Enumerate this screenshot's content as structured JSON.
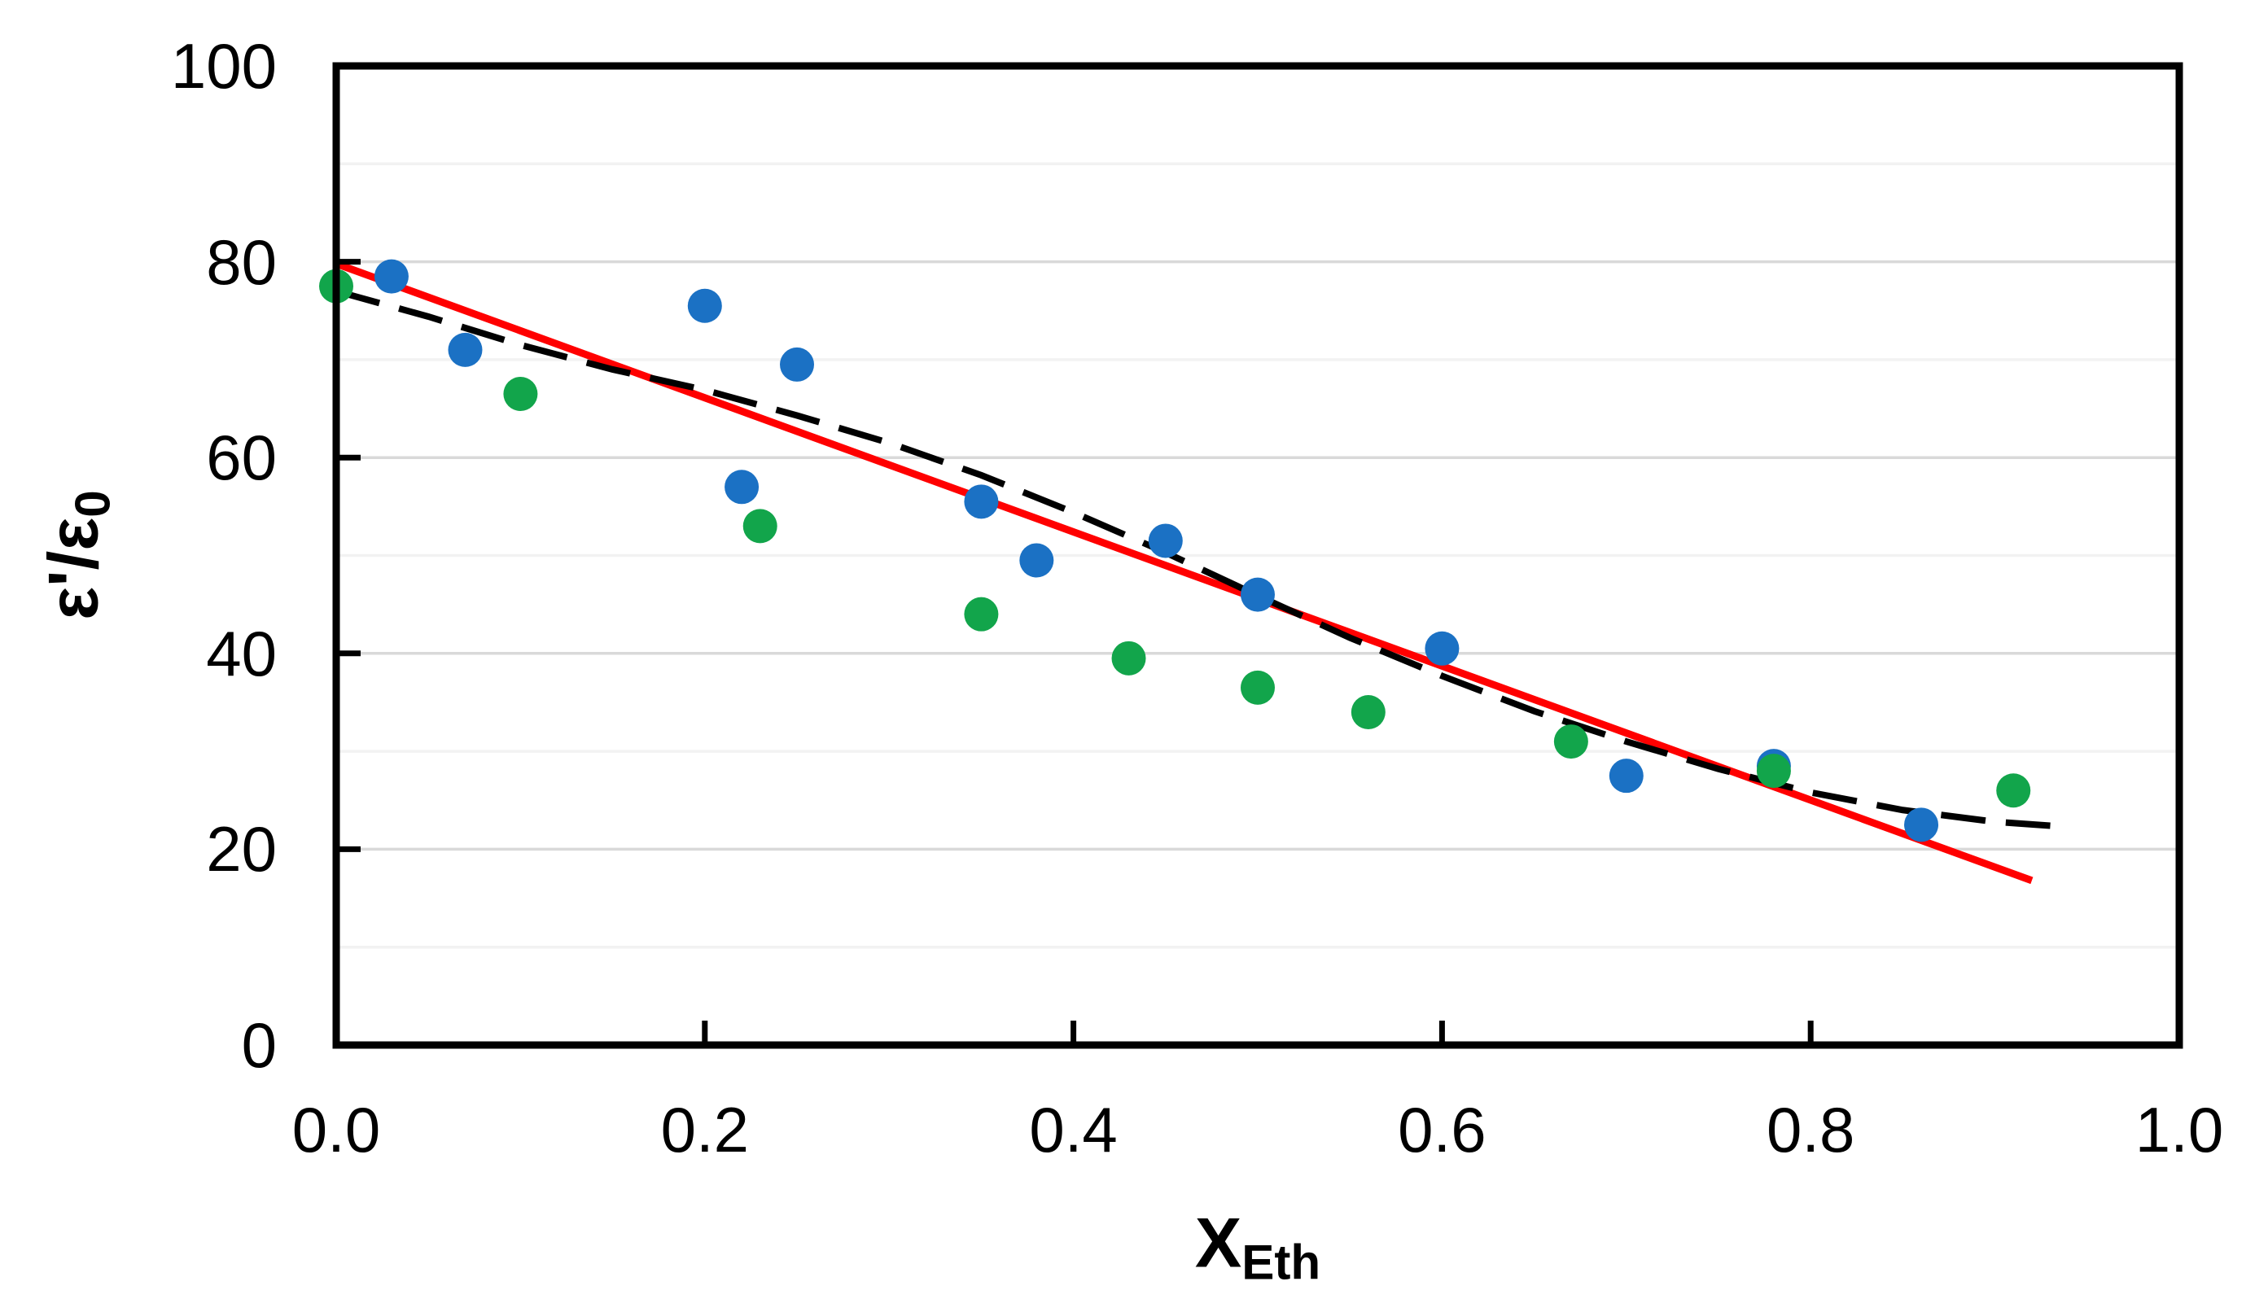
{
  "figure": {
    "background": "#ffffff"
  },
  "colors": {
    "axis": "#000000",
    "major_grid": "#D9D9D9",
    "minor_grid": "#F2F2F2",
    "blue_series": "#1B71C4",
    "green_series": "#12A54B",
    "red_line": "#FF0000",
    "dashed_line": "#000000",
    "text": "#000000"
  },
  "chart_data": {
    "type": "scatter",
    "title": "",
    "xlabel": {
      "main": "X",
      "sub": "Eth"
    },
    "ylabel": {
      "main": "ε'/ε",
      "sub": "0"
    },
    "xlim": [
      0.0,
      1.0
    ],
    "ylim": [
      0,
      100
    ],
    "grid": {
      "major": "on",
      "minor": "on",
      "minor_step": 10,
      "major_step": 20
    },
    "x_ticks": {
      "values": [
        0.0,
        0.2,
        0.4,
        0.6,
        0.8,
        1.0
      ],
      "labels": [
        "0.0",
        "0.2",
        "0.4",
        "0.6",
        "0.8",
        "1.0"
      ],
      "inside_tick_values": [
        0.2,
        0.4,
        0.6,
        0.8
      ]
    },
    "y_ticks": {
      "values": [
        0,
        20,
        40,
        60,
        80,
        100
      ],
      "labels": [
        "0",
        "20",
        "40",
        "60",
        "80",
        "100"
      ],
      "inside_tick_values": [
        20,
        40,
        60,
        80
      ]
    },
    "series": [
      {
        "name": "blue-points",
        "color": "#1B71C4",
        "marker": "circle",
        "points": [
          [
            0.03,
            78.5
          ],
          [
            0.07,
            71.0
          ],
          [
            0.2,
            75.5
          ],
          [
            0.22,
            57.0
          ],
          [
            0.25,
            69.5
          ],
          [
            0.35,
            55.5
          ],
          [
            0.38,
            49.5
          ],
          [
            0.45,
            51.5
          ],
          [
            0.5,
            46.0
          ],
          [
            0.6,
            40.5
          ],
          [
            0.7,
            27.5
          ],
          [
            0.78,
            28.5
          ],
          [
            0.86,
            22.5
          ]
        ]
      },
      {
        "name": "green-points",
        "color": "#12A54B",
        "marker": "circle",
        "points": [
          [
            0.0,
            77.5
          ],
          [
            0.1,
            66.5
          ],
          [
            0.23,
            53.0
          ],
          [
            0.35,
            44.0
          ],
          [
            0.43,
            39.5
          ],
          [
            0.5,
            36.5
          ],
          [
            0.56,
            34.0
          ],
          [
            0.67,
            31.0
          ],
          [
            0.78,
            28.0
          ],
          [
            0.91,
            26.0
          ]
        ]
      }
    ],
    "lines": [
      {
        "name": "red-linear-fit",
        "style": "solid",
        "color": "#FF0000",
        "points": [
          [
            0.0,
            79.8
          ],
          [
            0.92,
            16.8
          ]
        ]
      },
      {
        "name": "black-dashed-fit",
        "style": "dashed",
        "color": "#000000",
        "points": [
          [
            0.0,
            77.0
          ],
          [
            0.05,
            74.4
          ],
          [
            0.1,
            71.5
          ],
          [
            0.15,
            69.0
          ],
          [
            0.2,
            66.9
          ],
          [
            0.25,
            64.3
          ],
          [
            0.3,
            61.5
          ],
          [
            0.35,
            58.2
          ],
          [
            0.4,
            54.4
          ],
          [
            0.45,
            50.3
          ],
          [
            0.5,
            45.9
          ],
          [
            0.55,
            41.6
          ],
          [
            0.6,
            37.7
          ],
          [
            0.65,
            34.1
          ],
          [
            0.7,
            31.0
          ],
          [
            0.75,
            28.2
          ],
          [
            0.8,
            25.8
          ],
          [
            0.85,
            24.0
          ],
          [
            0.9,
            22.8
          ],
          [
            0.93,
            22.4
          ]
        ]
      }
    ],
    "legend": "none"
  }
}
